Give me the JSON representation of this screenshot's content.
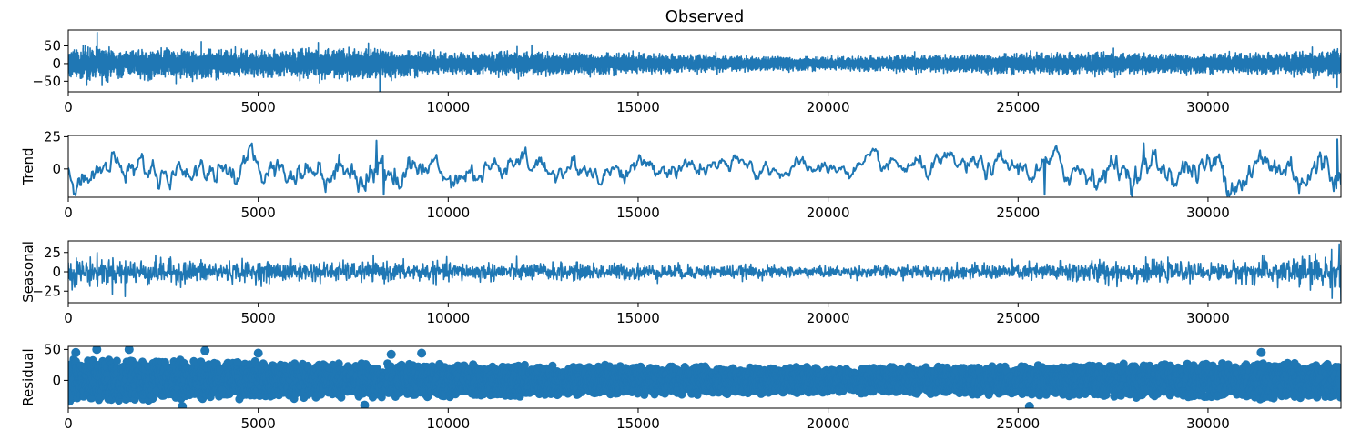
{
  "chart_data": [
    {
      "type": "line",
      "title": "Observed",
      "ylabel": "",
      "xlim": [
        0,
        33500
      ],
      "ylim": [
        -80,
        95
      ],
      "xticks": [
        0,
        5000,
        10000,
        15000,
        20000,
        25000,
        30000
      ],
      "xtick_labels": [
        "0",
        "5000",
        "10000",
        "15000",
        "20000",
        "25000",
        "30000"
      ],
      "yticks": [
        -50,
        0,
        50
      ],
      "ytick_labels": [
        "−50",
        "0",
        "50"
      ],
      "color": "#1f77b4",
      "n_points": 33500,
      "envelope": {
        "x": [
          0,
          700,
          1500,
          3500,
          5000,
          8000,
          8200,
          10000,
          12000,
          15000,
          17000,
          20000,
          22000,
          25000,
          27000,
          30000,
          33000,
          33500
        ],
        "amplitude": [
          40,
          45,
          38,
          40,
          35,
          45,
          40,
          28,
          33,
          28,
          22,
          18,
          22,
          28,
          30,
          26,
          32,
          45
        ]
      },
      "spikes": [
        {
          "x": 760,
          "y": 88
        },
        {
          "x": 8200,
          "y": -80
        },
        {
          "x": 3500,
          "y": 62
        },
        {
          "x": 7900,
          "y": 58
        },
        {
          "x": 12200,
          "y": 52
        },
        {
          "x": 33400,
          "y": -68
        }
      ]
    },
    {
      "type": "line",
      "title": "",
      "ylabel": "Trend",
      "xlim": [
        0,
        33500
      ],
      "ylim": [
        -22,
        26
      ],
      "xticks": [
        0,
        5000,
        10000,
        15000,
        20000,
        25000,
        30000
      ],
      "xtick_labels": [
        "0",
        "5000",
        "10000",
        "15000",
        "20000",
        "25000",
        "30000"
      ],
      "yticks": [
        0,
        25
      ],
      "ytick_labels": [
        "0",
        "25"
      ],
      "color": "#1f77b4",
      "n_points": 1400,
      "envelope": {
        "x": [
          0,
          5000,
          8100,
          10000,
          15000,
          20000,
          25000,
          28000,
          33500
        ],
        "amplitude": [
          11,
          10,
          15,
          10,
          8,
          6,
          9,
          12,
          16
        ]
      },
      "spikes": [
        {
          "x": 8100,
          "y": 22
        },
        {
          "x": 8300,
          "y": -20
        },
        {
          "x": 25700,
          "y": -20
        },
        {
          "x": 28300,
          "y": 20
        },
        {
          "x": 33400,
          "y": 23
        },
        {
          "x": 33500,
          "y": -12
        }
      ]
    },
    {
      "type": "line",
      "title": "",
      "ylabel": "Seasonal",
      "xlim": [
        0,
        33500
      ],
      "ylim": [
        -40,
        40
      ],
      "xticks": [
        0,
        5000,
        10000,
        15000,
        20000,
        25000,
        30000
      ],
      "xtick_labels": [
        "0",
        "5000",
        "10000",
        "15000",
        "20000",
        "25000",
        "30000"
      ],
      "yticks": [
        -25,
        0,
        25
      ],
      "ytick_labels": [
        "−25",
        "0",
        "25"
      ],
      "color": "#1f77b4",
      "n_points": 3000,
      "envelope": {
        "x": [
          0,
          5000,
          10000,
          15000,
          20000,
          25000,
          27000,
          30000,
          33500
        ],
        "amplitude": [
          22,
          15,
          14,
          12,
          8,
          12,
          18,
          12,
          28
        ]
      },
      "spikes": [
        {
          "x": 1500,
          "y": -32
        },
        {
          "x": 33450,
          "y": 36
        },
        {
          "x": 33500,
          "y": -38
        }
      ]
    },
    {
      "type": "scatter",
      "title": "",
      "ylabel": "Residual",
      "xlim": [
        0,
        33500
      ],
      "ylim": [
        -45,
        55
      ],
      "xticks": [
        0,
        5000,
        10000,
        15000,
        20000,
        25000,
        30000
      ],
      "xtick_labels": [
        "0",
        "5000",
        "10000",
        "15000",
        "20000",
        "25000",
        "30000"
      ],
      "yticks": [
        0,
        50
      ],
      "ytick_labels": [
        "0",
        "50"
      ],
      "color": "#1f77b4",
      "n_points": 1300,
      "envelope": {
        "x": [
          0,
          5000,
          10000,
          15000,
          20000,
          25000,
          30000,
          33500
        ],
        "amplitude": [
          38,
          32,
          28,
          25,
          22,
          26,
          30,
          32
        ]
      },
      "spikes": [
        {
          "x": 200,
          "y": 45
        },
        {
          "x": 750,
          "y": 50
        },
        {
          "x": 1600,
          "y": 50
        },
        {
          "x": 3600,
          "y": 48
        },
        {
          "x": 5000,
          "y": 44
        },
        {
          "x": 8500,
          "y": 42
        },
        {
          "x": 9300,
          "y": 44
        },
        {
          "x": 3000,
          "y": -42
        },
        {
          "x": 7800,
          "y": -40
        },
        {
          "x": 25300,
          "y": -42
        },
        {
          "x": 31400,
          "y": 45
        }
      ]
    }
  ]
}
